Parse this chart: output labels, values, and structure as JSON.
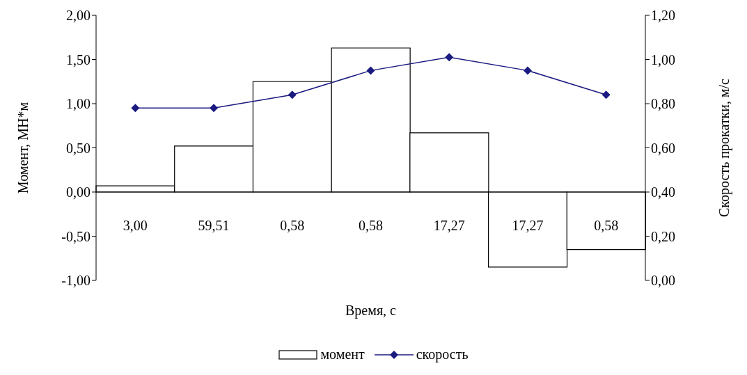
{
  "chart_data": {
    "type": "bar",
    "xlabel": "Время, с",
    "ylabel": "Момент,  МН*м",
    "y2label": "Скорость прокатки,  м/с",
    "categories": [
      "3,00",
      "59,51",
      "0,58",
      "0,58",
      "17,27",
      "17,27",
      "0,58"
    ],
    "series": [
      {
        "name": "момент",
        "color": "#ffffff",
        "values": [
          0.07,
          0.52,
          1.25,
          1.63,
          0.67,
          -0.85,
          -0.65
        ]
      },
      {
        "name": "скорость",
        "type": "line",
        "axis": "y2",
        "color": "#1a1a80",
        "marker": "diamond",
        "values": [
          0.78,
          0.78,
          0.84,
          0.95,
          1.01,
          0.95,
          0.84
        ]
      }
    ],
    "ylim": [
      -1,
      2
    ],
    "yticks": [
      {
        "value": -1,
        "label": "-1,00"
      },
      {
        "value": -0.5,
        "label": "-0,50"
      },
      {
        "value": 0,
        "label": "0,00"
      },
      {
        "value": 0.5,
        "label": "0,50"
      },
      {
        "value": 1,
        "label": "1,00"
      },
      {
        "value": 1.5,
        "label": "1,50"
      },
      {
        "value": 2,
        "label": "2,00"
      }
    ],
    "y2lim": [
      0,
      1.2
    ],
    "y2ticks": [
      {
        "value": 0,
        "label": "0,00"
      },
      {
        "value": 0.2,
        "label": "0,20"
      },
      {
        "value": 0.4,
        "label": "0,40"
      },
      {
        "value": 0.6,
        "label": "0,60"
      },
      {
        "value": 0.8,
        "label": "0,80"
      },
      {
        "value": 1,
        "label": "1,00"
      },
      {
        "value": 1.2,
        "label": "1,20"
      }
    ],
    "legend": "bottom",
    "grid": false
  }
}
